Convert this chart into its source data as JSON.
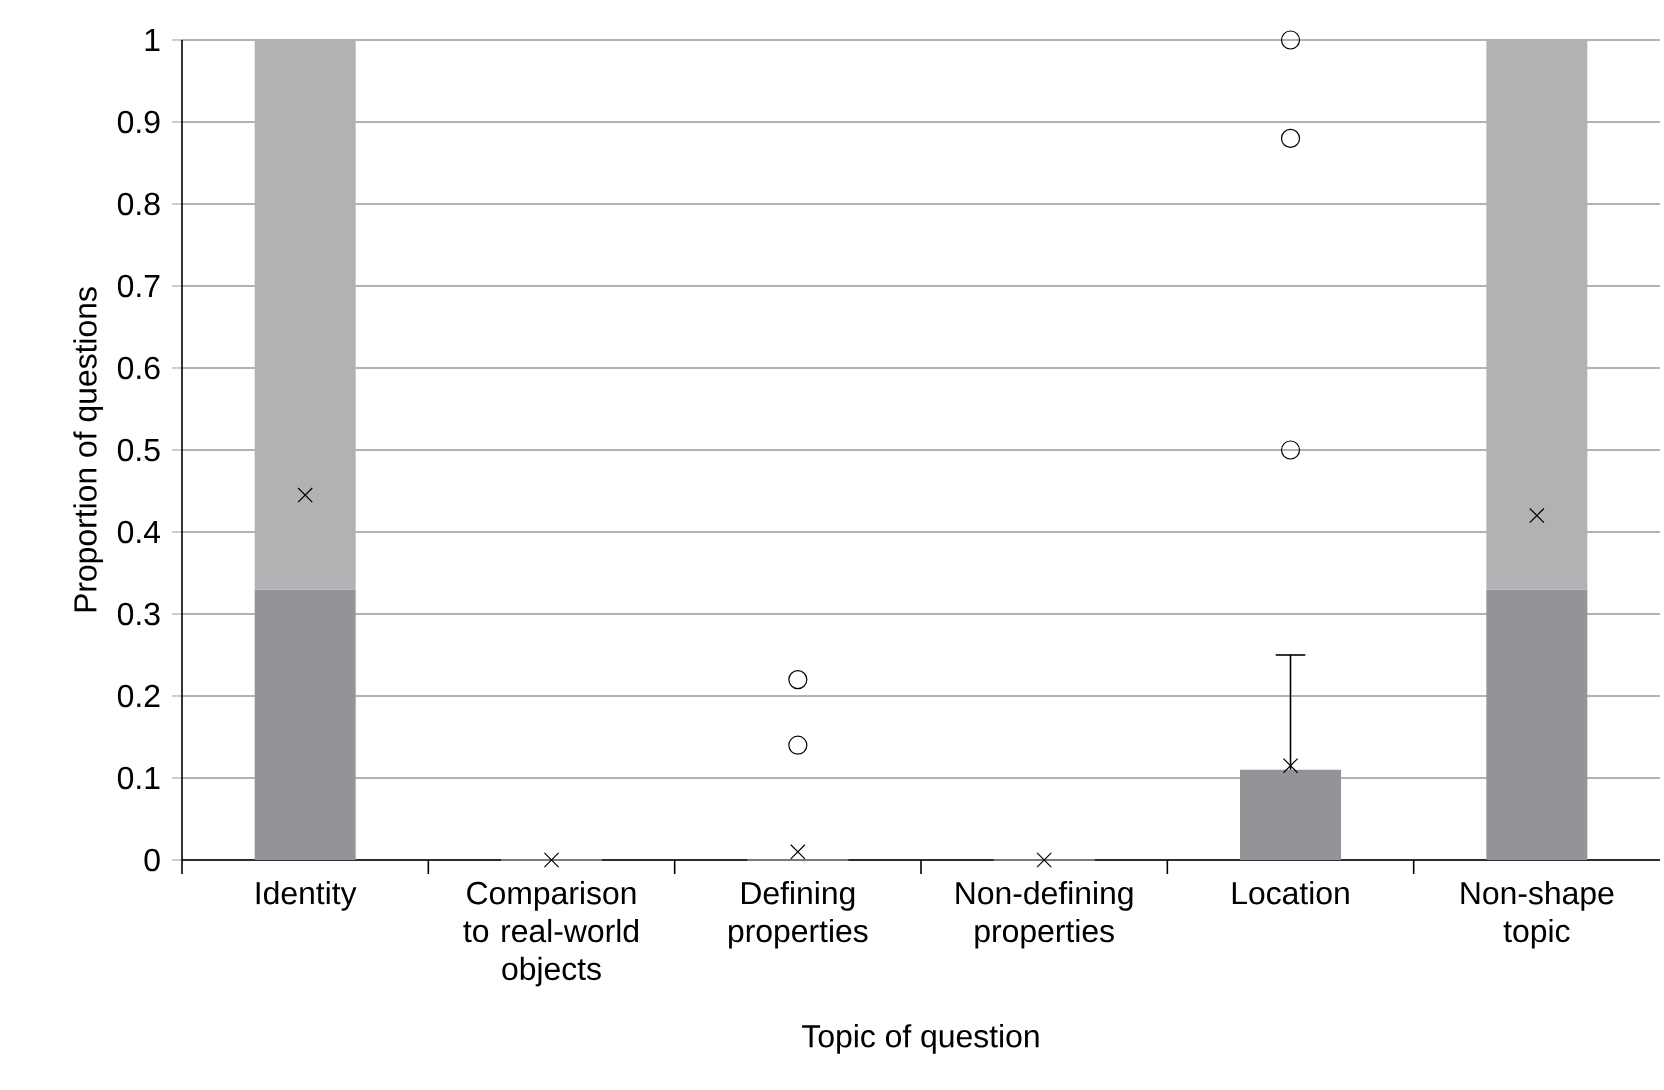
{
  "chart_data": {
    "type": "box",
    "xlabel": "Topic of question",
    "ylabel": "Proportion of questions",
    "categories": [
      "Identity",
      "Comparison to real-world objects",
      "Defining properties",
      "Non-defining properties",
      "Location",
      "Non-shape topic"
    ],
    "series": [
      {
        "color": "#939497",
        "boxes": [
          {
            "low": 0,
            "q1": 0,
            "median": 0.33,
            "q3": 1,
            "high": 1,
            "mean": 0.445
          },
          {
            "low": 0,
            "q1": 0,
            "median": 0,
            "q3": 0,
            "high": 0,
            "mean": 0
          },
          {
            "low": 0,
            "q1": 0,
            "median": 0,
            "q3": 0,
            "high": 0,
            "mean": 0.01,
            "outliers": [
              0.14,
              0.22
            ]
          },
          {
            "low": 0,
            "q1": 0,
            "median": 0,
            "q3": 0,
            "high": 0,
            "mean": 0
          },
          {
            "low": 0,
            "q1": 0,
            "median": 0.11,
            "q3": 0.11,
            "high": 0.25,
            "mean": 0.115,
            "outliers": [
              0.5,
              0.88,
              1
            ]
          },
          {
            "low": 0,
            "q1": 0,
            "median": 0.33,
            "q3": 1,
            "high": 1,
            "mean": 0.42
          }
        ]
      }
    ],
    "ylim": [
      0,
      1
    ],
    "yticks": [
      0,
      0.1,
      0.2,
      0.3,
      0.4,
      0.5,
      0.6,
      0.7,
      0.8,
      0.9,
      1
    ],
    "grid": "y"
  }
}
